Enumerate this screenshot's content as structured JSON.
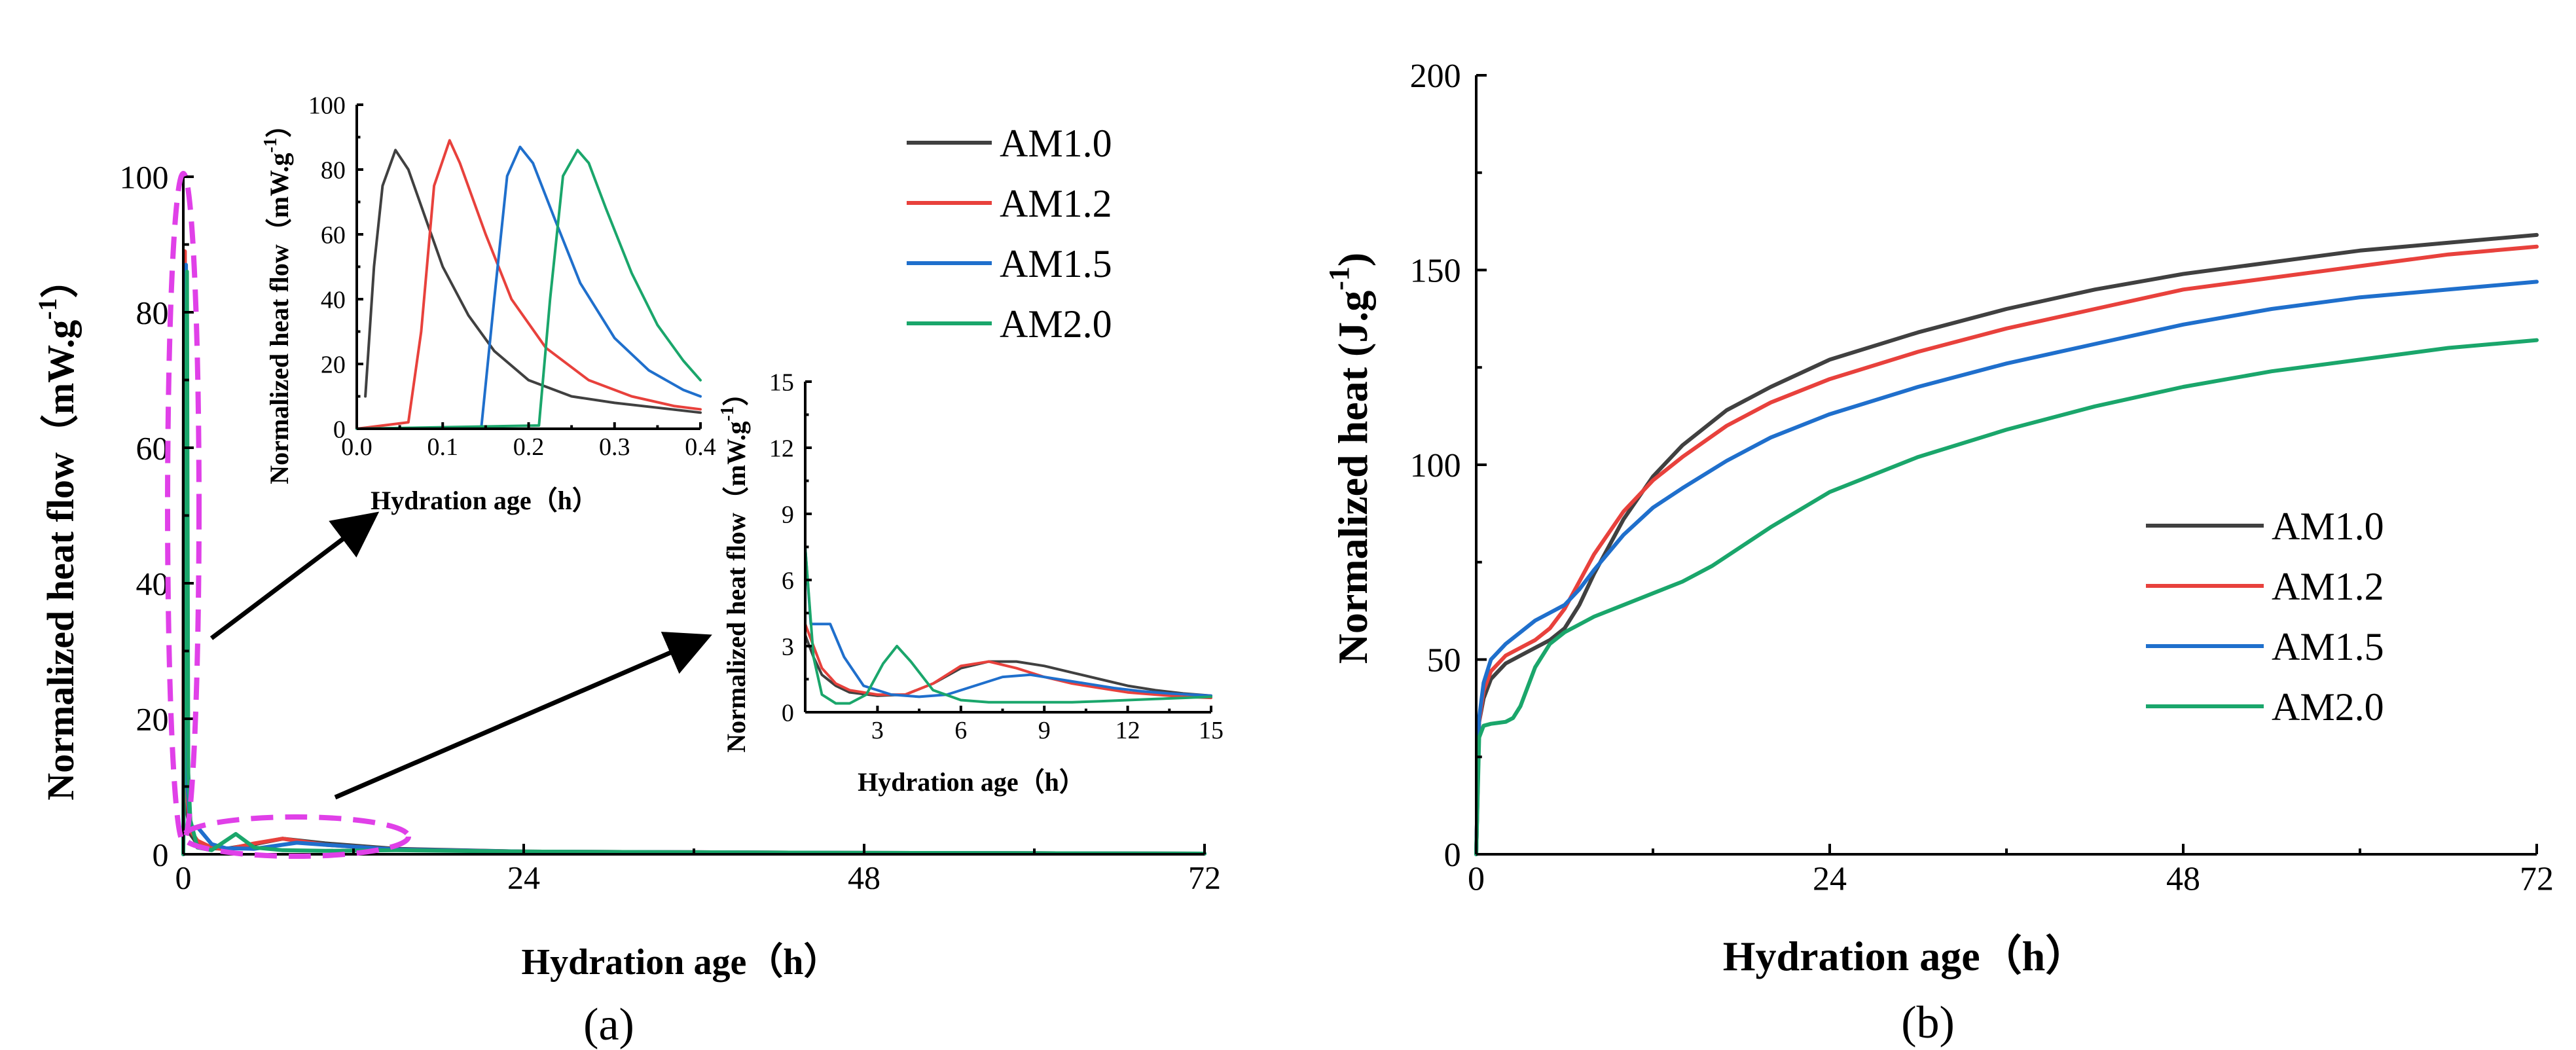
{
  "chart_data": [
    {
      "id": "a_main",
      "type": "line",
      "panel_label": "(a)",
      "xlabel": "Hydration age（h）",
      "ylabel": "Normalized heat flow（mW.g",
      "ylabel_sup": "-1",
      "ylabel_close": "）",
      "xlim": [
        0,
        72
      ],
      "ylim": [
        0,
        100
      ],
      "xticks": [
        0,
        24,
        48,
        72
      ],
      "yticks": [
        0,
        20,
        40,
        60,
        80,
        100
      ],
      "series": [
        {
          "name": "AM1.0",
          "color": "#404040",
          "x": [
            0,
            0.05,
            0.15,
            0.5,
            1,
            2,
            3,
            5,
            7,
            10,
            15,
            24,
            36,
            48,
            60,
            72
          ],
          "y": [
            0,
            86,
            8,
            3,
            1.5,
            0.9,
            0.8,
            1.5,
            2.3,
            1.6,
            0.8,
            0.4,
            0.3,
            0.2,
            0.15,
            0.1
          ]
        },
        {
          "name": "AM1.2",
          "color": "#e8413c",
          "x": [
            0,
            0.11,
            0.2,
            0.5,
            1,
            2,
            3,
            5,
            7,
            10,
            15,
            24,
            36,
            48,
            60,
            72
          ],
          "y": [
            0,
            89,
            10,
            3.5,
            2,
            1,
            0.7,
            1.6,
            2.3,
            1.4,
            0.7,
            0.4,
            0.3,
            0.2,
            0.15,
            0.1
          ]
        },
        {
          "name": "AM1.5",
          "color": "#1f6fcc",
          "x": [
            0,
            0.19,
            0.3,
            0.5,
            1,
            2,
            3,
            5,
            8,
            10,
            15,
            24,
            36,
            48,
            60,
            72
          ],
          "y": [
            0,
            87,
            10,
            4,
            4,
            1.5,
            0.9,
            0.8,
            1.7,
            1.4,
            0.7,
            0.4,
            0.3,
            0.2,
            0.15,
            0.1
          ]
        },
        {
          "name": "AM2.0",
          "color": "#1aa66b",
          "x": [
            0,
            0.26,
            0.35,
            0.5,
            1,
            2,
            3.7,
            5,
            7,
            10,
            15,
            24,
            36,
            48,
            60,
            72
          ],
          "y": [
            0,
            86,
            12,
            5,
            1,
            0.6,
            3,
            1,
            0.6,
            0.5,
            0.6,
            0.4,
            0.3,
            0.2,
            0.15,
            0.1
          ]
        }
      ],
      "annotations": [
        "first-peak-ellipse",
        "second-peak-ellipse",
        "arrow-to-inset-1",
        "arrow-to-inset-2"
      ]
    },
    {
      "id": "a_inset1",
      "type": "line",
      "xlabel": "Hydration age（h）",
      "ylabel": "Normalized heat flow（mW.g",
      "ylabel_sup": "-1",
      "ylabel_close": "）",
      "xlim": [
        0,
        0.4
      ],
      "ylim": [
        0,
        100
      ],
      "xticks": [
        0.0,
        0.1,
        0.2,
        0.3,
        0.4
      ],
      "xtick_labels": [
        "0.0",
        "0.1",
        "0.2",
        "0.3",
        "0.4"
      ],
      "yticks": [
        0,
        20,
        40,
        60,
        80,
        100
      ],
      "series": [
        {
          "name": "AM1.0",
          "color": "#404040",
          "x": [
            0.01,
            0.02,
            0.03,
            0.045,
            0.06,
            0.08,
            0.1,
            0.13,
            0.16,
            0.2,
            0.25,
            0.3,
            0.35,
            0.4
          ],
          "y": [
            10,
            50,
            75,
            86,
            80,
            65,
            50,
            35,
            24,
            15,
            10,
            8,
            6.5,
            5
          ]
        },
        {
          "name": "AM1.2",
          "color": "#e8413c",
          "x": [
            0,
            0.06,
            0.075,
            0.09,
            0.108,
            0.12,
            0.15,
            0.18,
            0.22,
            0.27,
            0.32,
            0.37,
            0.4
          ],
          "y": [
            0,
            2,
            30,
            75,
            89,
            82,
            60,
            40,
            25,
            15,
            10,
            7,
            6
          ]
        },
        {
          "name": "AM1.5",
          "color": "#1f6fcc",
          "x": [
            0,
            0.145,
            0.16,
            0.175,
            0.19,
            0.205,
            0.23,
            0.26,
            0.3,
            0.34,
            0.38,
            0.4
          ],
          "y": [
            0,
            0.5,
            40,
            78,
            87,
            82,
            65,
            45,
            28,
            18,
            12,
            10
          ]
        },
        {
          "name": "AM2.0",
          "color": "#1aa66b",
          "x": [
            0,
            0.212,
            0.225,
            0.24,
            0.257,
            0.27,
            0.29,
            0.32,
            0.35,
            0.38,
            0.4
          ],
          "y": [
            0,
            1,
            40,
            78,
            86,
            82,
            68,
            48,
            32,
            21,
            15
          ]
        }
      ]
    },
    {
      "id": "a_inset2",
      "type": "line",
      "xlabel": "Hydration age（h）",
      "ylabel": "Normalized heat flow（mW.g",
      "ylabel_sup": "-1",
      "ylabel_close": "）",
      "xlim": [
        0.4,
        15
      ],
      "ylim": [
        0,
        15
      ],
      "xticks": [
        3,
        6,
        9,
        12,
        15
      ],
      "yticks": [
        0,
        3,
        6,
        9,
        12,
        15
      ],
      "series": [
        {
          "name": "AM1.0",
          "color": "#404040",
          "x": [
            0.4,
            0.7,
            1,
            1.5,
            2,
            3,
            4,
            5,
            6,
            7,
            8,
            9,
            10,
            11,
            12,
            13,
            14,
            15
          ],
          "y": [
            3.5,
            2.5,
            1.7,
            1.2,
            0.9,
            0.75,
            0.8,
            1.3,
            2,
            2.3,
            2.3,
            2.1,
            1.8,
            1.5,
            1.2,
            1,
            0.85,
            0.75
          ]
        },
        {
          "name": "AM1.2",
          "color": "#e8413c",
          "x": [
            0.4,
            0.7,
            1,
            1.5,
            2,
            3,
            4,
            5,
            6,
            7,
            8,
            9,
            10,
            11,
            12,
            13,
            14,
            15
          ],
          "y": [
            4,
            3,
            2,
            1.3,
            1,
            0.8,
            0.8,
            1.3,
            2.1,
            2.3,
            2,
            1.6,
            1.3,
            1.1,
            0.9,
            0.8,
            0.7,
            0.65
          ]
        },
        {
          "name": "AM1.5",
          "color": "#1f6fcc",
          "x": [
            0.4,
            0.6,
            1,
            1.3,
            1.8,
            2.5,
            3.5,
            4.5,
            5.5,
            6.5,
            7.5,
            8.5,
            9.5,
            10.5,
            11.5,
            12.5,
            13.5,
            15
          ],
          "y": [
            7.5,
            4,
            4,
            4,
            2.5,
            1.2,
            0.8,
            0.7,
            0.8,
            1.2,
            1.6,
            1.7,
            1.5,
            1.3,
            1.1,
            0.95,
            0.85,
            0.75
          ]
        },
        {
          "name": "AM2.0",
          "color": "#1aa66b",
          "x": [
            0.4,
            0.7,
            1,
            1.5,
            2,
            2.6,
            3.2,
            3.7,
            4.2,
            5,
            6,
            7,
            8,
            9,
            10,
            11,
            12,
            13,
            14,
            15
          ],
          "y": [
            7.5,
            2.5,
            0.8,
            0.4,
            0.4,
            0.8,
            2.2,
            3,
            2.3,
            1,
            0.55,
            0.45,
            0.45,
            0.45,
            0.45,
            0.5,
            0.55,
            0.6,
            0.65,
            0.7
          ]
        }
      ]
    },
    {
      "id": "b_main",
      "type": "line",
      "panel_label": "(b)",
      "xlabel": "Hydration age（h）",
      "ylabel": "Normalized heat (J.g",
      "ylabel_sup": "-1",
      "ylabel_close": ")",
      "xlim": [
        0,
        72
      ],
      "ylim": [
        0,
        200
      ],
      "xticks": [
        0,
        24,
        48,
        72
      ],
      "yticks": [
        0,
        50,
        100,
        150,
        200
      ],
      "series": [
        {
          "name": "AM1.0",
          "color": "#404040",
          "x": [
            0,
            0.2,
            0.5,
            1,
            2,
            3,
            4,
            5,
            6,
            7,
            8,
            10,
            12,
            14,
            17,
            20,
            24,
            30,
            36,
            42,
            48,
            54,
            60,
            66,
            72
          ],
          "y": [
            0,
            34,
            40,
            45,
            49,
            51,
            53,
            55,
            58,
            64,
            72,
            86,
            97,
            105,
            114,
            120,
            127,
            134,
            140,
            145,
            149,
            152,
            155,
            157,
            159
          ]
        },
        {
          "name": "AM1.2",
          "color": "#e8413c",
          "x": [
            0,
            0.2,
            0.5,
            1,
            2,
            3,
            4,
            5,
            6,
            7,
            8,
            10,
            12,
            14,
            17,
            20,
            24,
            30,
            36,
            42,
            48,
            54,
            60,
            66,
            72
          ],
          "y": [
            0,
            34,
            42,
            47,
            51,
            53,
            55,
            58,
            63,
            70,
            77,
            88,
            96,
            102,
            110,
            116,
            122,
            129,
            135,
            140,
            145,
            148,
            151,
            154,
            156
          ]
        },
        {
          "name": "AM1.5",
          "color": "#1f6fcc",
          "x": [
            0,
            0.2,
            0.5,
            1,
            2,
            3,
            4,
            5,
            6,
            7,
            8,
            10,
            12,
            14,
            17,
            20,
            24,
            30,
            36,
            42,
            48,
            54,
            60,
            66,
            72
          ],
          "y": [
            0,
            35,
            44,
            50,
            54,
            57,
            60,
            62,
            64,
            68,
            73,
            82,
            89,
            94,
            101,
            107,
            113,
            120,
            126,
            131,
            136,
            140,
            143,
            145,
            147
          ]
        },
        {
          "name": "AM2.0",
          "color": "#1aa66b",
          "x": [
            0,
            0.2,
            0.5,
            1,
            2,
            2.5,
            3,
            4,
            5,
            6,
            7,
            8,
            10,
            12,
            14,
            16,
            18,
            20,
            24,
            30,
            36,
            42,
            48,
            54,
            60,
            66,
            72
          ],
          "y": [
            0,
            30,
            33,
            33.5,
            34,
            35,
            38,
            48,
            54,
            57,
            59,
            61,
            64,
            67,
            70,
            74,
            79,
            84,
            93,
            102,
            109,
            115,
            120,
            124,
            127,
            130,
            132
          ]
        }
      ]
    }
  ]
}
